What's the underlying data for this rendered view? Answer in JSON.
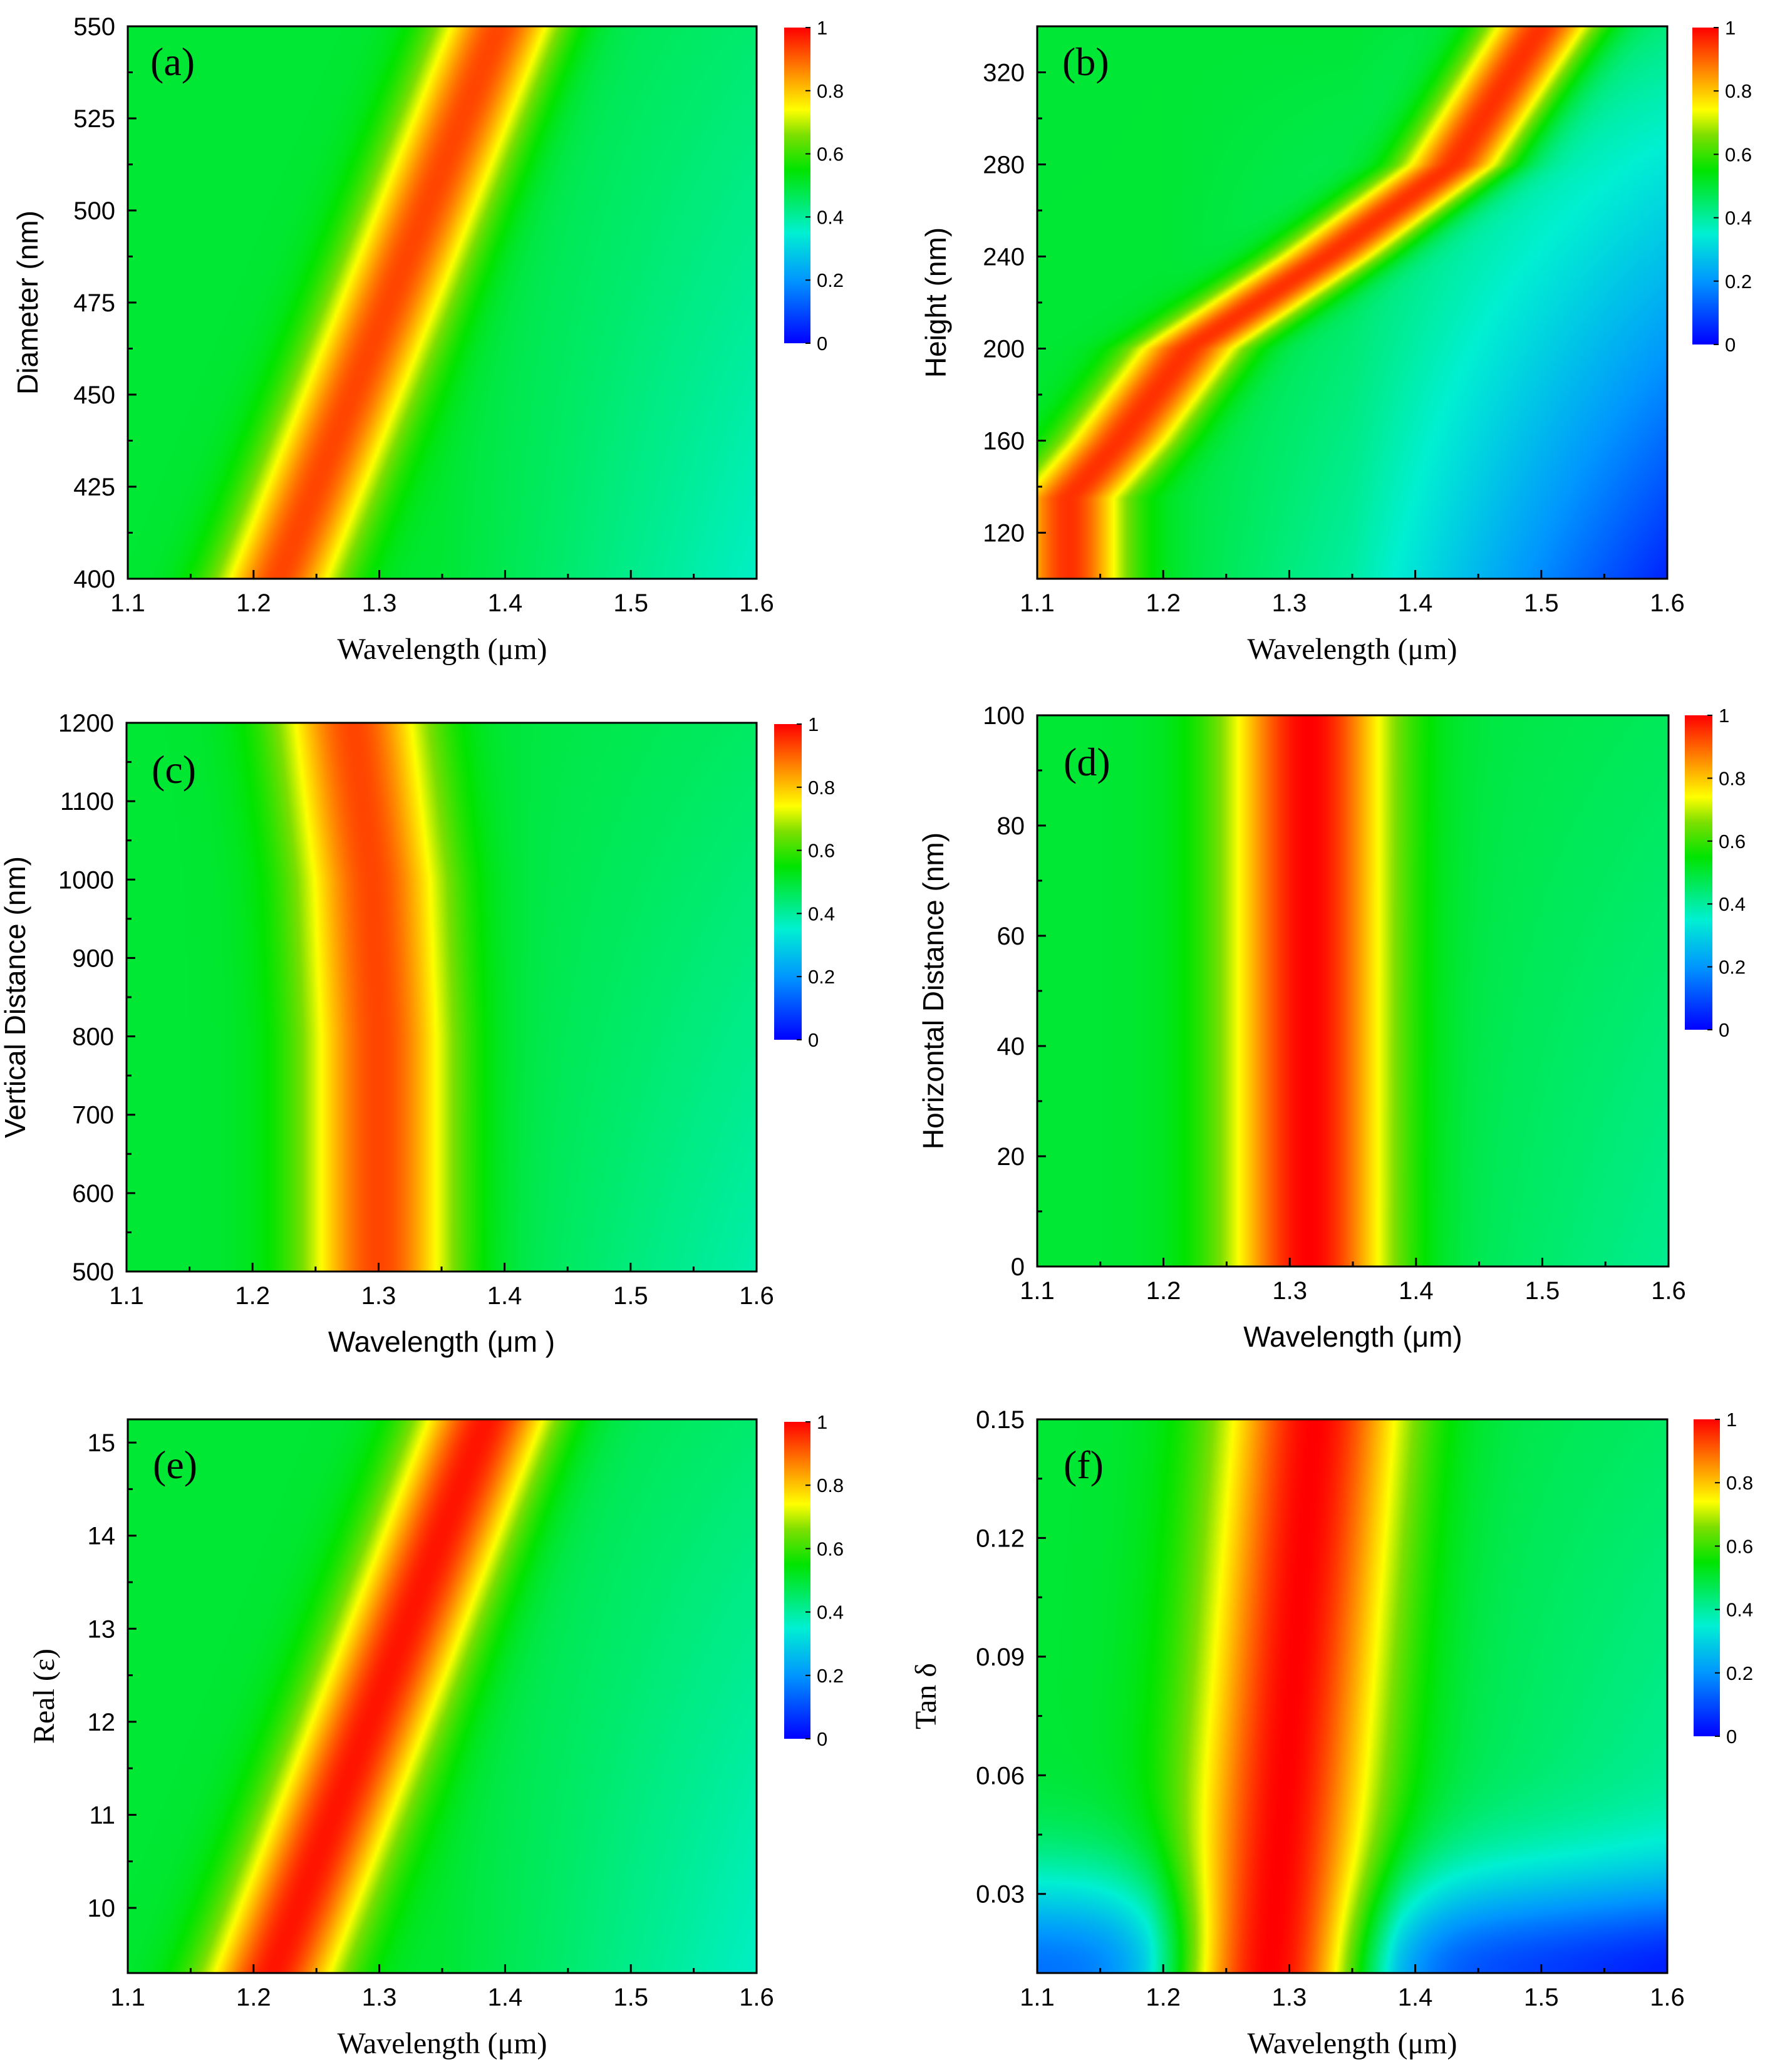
{
  "colormap": {
    "stops": [
      {
        "v": 0.0,
        "color": "#0000ff"
      },
      {
        "v": 0.2,
        "color": "#0096ff"
      },
      {
        "v": 0.35,
        "color": "#00f0d2"
      },
      {
        "v": 0.55,
        "color": "#00e400"
      },
      {
        "v": 0.66,
        "color": "#7ddf00"
      },
      {
        "v": 0.74,
        "color": "#ffff00"
      },
      {
        "v": 0.87,
        "color": "#ff8000"
      },
      {
        "v": 1.0,
        "color": "#ff0000"
      }
    ]
  },
  "chart_data": [
    {
      "id": "a",
      "type": "heatmap",
      "panel_label": "(a)",
      "xlabel": "Wavelength (μm)",
      "ylabel": "Diameter (nm)",
      "xlim": [
        1.1,
        1.6
      ],
      "ylim": [
        400,
        550
      ],
      "xticks": [
        1.1,
        1.2,
        1.3,
        1.4,
        1.5,
        1.6
      ],
      "xtick_labels": [
        "1.1",
        "1.2",
        "1.3",
        "1.4",
        "1.5",
        "1.6"
      ],
      "yticks": [
        400,
        425,
        450,
        475,
        500,
        525,
        550
      ],
      "ytick_labels": [
        "400",
        "425",
        "450",
        "475",
        "500",
        "525",
        "550"
      ],
      "colorbar": {
        "range": [
          0,
          1
        ],
        "ticks": [
          0,
          0.2,
          0.4,
          0.6,
          0.8,
          1
        ],
        "tick_labels": [
          "0",
          "0.2",
          "0.4",
          "0.6",
          "0.8",
          "1"
        ]
      },
      "ridge": [
        {
          "y": 400,
          "x": 1.22
        },
        {
          "y": 550,
          "x": 1.395
        }
      ],
      "ridge_peak": 0.93,
      "ridge_width": 0.05,
      "background": 0.5,
      "slope": -0.55
    },
    {
      "id": "b",
      "type": "heatmap",
      "panel_label": "(b)",
      "xlabel": "Wavelength (μm)",
      "ylabel": "Height (nm)",
      "xlim": [
        1.1,
        1.6
      ],
      "ylim": [
        100,
        340
      ],
      "xticks": [
        1.1,
        1.2,
        1.3,
        1.4,
        1.5,
        1.6
      ],
      "xtick_labels": [
        "1.1",
        "1.2",
        "1.3",
        "1.4",
        "1.5",
        "1.6"
      ],
      "yticks": [
        120,
        160,
        200,
        240,
        280,
        320
      ],
      "ytick_labels": [
        "120",
        "160",
        "200",
        "240",
        "280",
        "320"
      ],
      "colorbar": {
        "range": [
          0,
          1
        ],
        "ticks": [
          0,
          0.2,
          0.4,
          0.6,
          0.8,
          1
        ],
        "tick_labels": [
          "0",
          "0.2",
          "0.4",
          "0.6",
          "0.8",
          "1"
        ]
      },
      "ridge": [
        {
          "y": 135,
          "x": 1.125
        },
        {
          "y": 160,
          "x": 1.165
        },
        {
          "y": 200,
          "x": 1.22
        },
        {
          "y": 240,
          "x": 1.33
        },
        {
          "y": 280,
          "x": 1.43
        },
        {
          "y": 340,
          "x": 1.5
        }
      ],
      "ridge_peak": 0.95,
      "ridge_width": 0.045,
      "background": 0.5,
      "slope": -0.7
    },
    {
      "id": "c",
      "type": "heatmap",
      "panel_label": "(c)",
      "xlabel": "Wavelength (μm )",
      "ylabel": "Vertical Distance (nm)",
      "xlim": [
        1.1,
        1.6
      ],
      "ylim": [
        500,
        1200
      ],
      "xticks": [
        1.1,
        1.2,
        1.3,
        1.4,
        1.5,
        1.6
      ],
      "xtick_labels": [
        "1.1",
        "1.2",
        "1.3",
        "1.4",
        "1.5",
        "1.6"
      ],
      "yticks": [
        500,
        600,
        700,
        800,
        900,
        1000,
        1100,
        1200
      ],
      "ytick_labels": [
        "500",
        "600",
        "700",
        "800",
        "900",
        "1000",
        "1100",
        "1200"
      ],
      "colorbar": {
        "range": [
          0,
          1
        ],
        "ticks": [
          0,
          0.2,
          0.4,
          0.6,
          0.8,
          1
        ],
        "tick_labels": [
          "0",
          "0.2",
          "0.4",
          "0.6",
          "0.8",
          "1"
        ]
      },
      "ridge": [
        {
          "y": 500,
          "x": 1.3
        },
        {
          "y": 800,
          "x": 1.3
        },
        {
          "y": 1000,
          "x": 1.295
        },
        {
          "y": 1200,
          "x": 1.28
        }
      ],
      "ridge_peak": 0.93,
      "ridge_width": 0.06,
      "background": 0.5,
      "slope": -0.45
    },
    {
      "id": "d",
      "type": "heatmap",
      "panel_label": "(d)",
      "xlabel": "Wavelength (μm)",
      "ylabel": "Horizontal Distance (nm)",
      "xlim": [
        1.1,
        1.6
      ],
      "ylim": [
        0,
        100
      ],
      "xticks": [
        1.1,
        1.2,
        1.3,
        1.4,
        1.5,
        1.6
      ],
      "xtick_labels": [
        "1.1",
        "1.2",
        "1.3",
        "1.4",
        "1.5",
        "1.6"
      ],
      "yticks": [
        0,
        20,
        40,
        60,
        80,
        100
      ],
      "ytick_labels": [
        "0",
        "20",
        "40",
        "60",
        "80",
        "100"
      ],
      "colorbar": {
        "range": [
          0,
          1
        ],
        "ticks": [
          0,
          0.2,
          0.4,
          0.6,
          0.8,
          1
        ],
        "tick_labels": [
          "0",
          "0.2",
          "0.4",
          "0.6",
          "0.8",
          "1"
        ]
      },
      "ridge": [
        {
          "y": 0,
          "x": 1.315
        },
        {
          "y": 100,
          "x": 1.315
        }
      ],
      "ridge_peak": 1.0,
      "ridge_width": 0.065,
      "background": 0.5,
      "slope": -0.35
    },
    {
      "id": "e",
      "type": "heatmap",
      "panel_label": "(e)",
      "xlabel": "Wavelength (μm)",
      "ylabel": "Real (ε)",
      "xlim": [
        1.1,
        1.6
      ],
      "ylim": [
        9.3,
        15.25
      ],
      "xticks": [
        1.1,
        1.2,
        1.3,
        1.4,
        1.5,
        1.6
      ],
      "xtick_labels": [
        "1.1",
        "1.2",
        "1.3",
        "1.4",
        "1.5",
        "1.6"
      ],
      "yticks": [
        10,
        11,
        12,
        13,
        14,
        15
      ],
      "ytick_labels": [
        "10",
        "11",
        "12",
        "13",
        "14",
        "15"
      ],
      "colorbar": {
        "range": [
          0,
          1
        ],
        "ticks": [
          0,
          0.2,
          0.4,
          0.6,
          0.8,
          1
        ],
        "tick_labels": [
          "0",
          "0.2",
          "0.4",
          "0.6",
          "0.8",
          "1"
        ]
      },
      "ridge": [
        {
          "y": 9.3,
          "x": 1.215
        },
        {
          "y": 15.25,
          "x": 1.385
        }
      ],
      "ridge_peak": 0.98,
      "ridge_width": 0.055,
      "background": 0.5,
      "slope": -0.55
    },
    {
      "id": "f",
      "type": "heatmap",
      "panel_label": "(f)",
      "xlabel": "Wavelength (μm)",
      "ylabel": "Tan δ",
      "xlim": [
        1.1,
        1.6
      ],
      "ylim": [
        0.01,
        0.15
      ],
      "xticks": [
        1.1,
        1.2,
        1.3,
        1.4,
        1.5,
        1.6
      ],
      "xtick_labels": [
        "1.1",
        "1.2",
        "1.3",
        "1.4",
        "1.5",
        "1.6"
      ],
      "yticks": [
        0.03,
        0.06,
        0.09,
        0.12,
        0.15
      ],
      "ytick_labels": [
        "0.03",
        "0.06",
        "0.09",
        "0.12",
        "0.15"
      ],
      "colorbar": {
        "range": [
          0,
          1
        ],
        "ticks": [
          0,
          0.2,
          0.4,
          0.6,
          0.8,
          1
        ],
        "tick_labels": [
          "0",
          "0.2",
          "0.4",
          "0.6",
          "0.8",
          "1"
        ]
      },
      "ridge": [
        {
          "y": 0.01,
          "x": 1.285
        },
        {
          "y": 0.15,
          "x": 1.32
        }
      ],
      "ridge_peak": 1.0,
      "ridge_width": 0.075,
      "background": 0.5,
      "slope": -0.45
    }
  ]
}
